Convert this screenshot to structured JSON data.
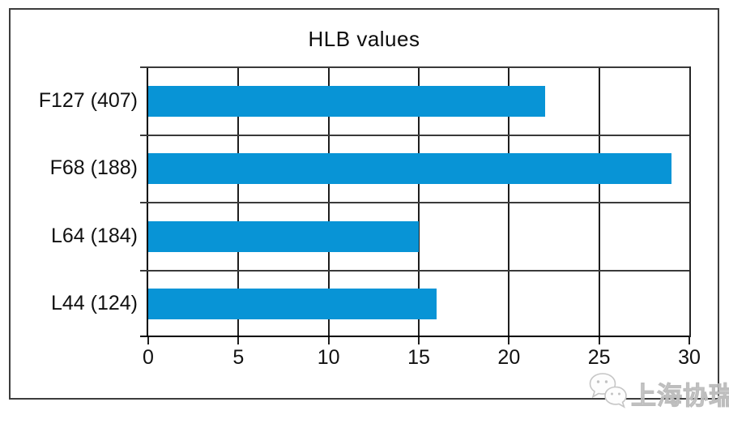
{
  "title": "HLB values",
  "chart_data": {
    "type": "bar",
    "orientation": "horizontal",
    "title": "HLB values",
    "categories": [
      "F127 (407)",
      "F68 (188)",
      "L64 (184)",
      "L44 (124)"
    ],
    "values": [
      22,
      29,
      15,
      16
    ],
    "xlabel": "",
    "ylabel": "",
    "xlim": [
      0,
      30
    ],
    "x_ticks": [
      0,
      5,
      10,
      15,
      20,
      25,
      30
    ],
    "grid": true,
    "legend": false,
    "bar_color": "#0894d6"
  },
  "watermark": {
    "text": "上海协瑞",
    "icon": "chat-bubbles-icon",
    "color": "#bdbdbd"
  },
  "colors": {
    "bar": "#0894d6",
    "frame_border": "#3d3d3d",
    "gridline": "#1e1e1e",
    "separator": "#3a3a3a",
    "text": "#111111"
  }
}
